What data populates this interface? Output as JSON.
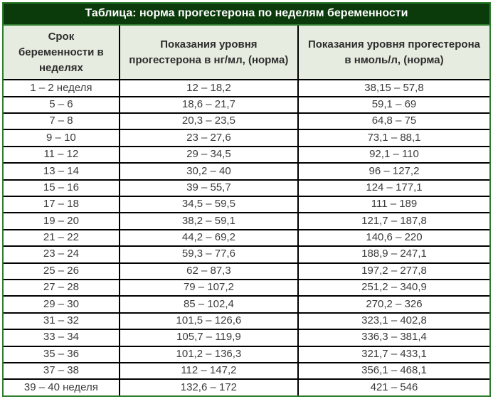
{
  "chart_data": {
    "type": "table",
    "title": "Таблица: норма прогестерона по неделям беременности",
    "columns": [
      "Срок беременности в неделях",
      "Показания уровня прогестерона в нг/мл, (норма)",
      "Показания уровня прогестерона в нмоль/л, (норма)"
    ],
    "rows": [
      [
        "1 – 2 неделя",
        "12 – 18,2",
        "38,15 – 57,8"
      ],
      [
        "5 – 6",
        "18,6 – 21,7",
        "59,1 – 69"
      ],
      [
        "7 – 8",
        "20,3 – 23,5",
        "64,8 – 75"
      ],
      [
        "9 – 10",
        "23 – 27,6",
        "73,1 – 88,1"
      ],
      [
        "11 – 12",
        "29 – 34,5",
        "92,1 – 110"
      ],
      [
        "13 – 14",
        "30,2 – 40",
        "96 – 127,2"
      ],
      [
        "15 – 16",
        "39 – 55,7",
        "124 – 177,1"
      ],
      [
        "17 – 18",
        "34,5 – 59,5",
        "111 – 189"
      ],
      [
        "19 – 20",
        "38,2 – 59,1",
        "121,7 – 187,8"
      ],
      [
        "21 – 22",
        "44,2 – 69,2",
        "140,6 – 220"
      ],
      [
        "23 – 24",
        "59,3 – 77,6",
        "188,9 – 247,1"
      ],
      [
        "25 – 26",
        "62 – 87,3",
        "197,2 – 277,8"
      ],
      [
        "27 – 28",
        "79 – 107,2",
        "251,2 – 340,9"
      ],
      [
        "29 – 30",
        "85 – 102,4",
        "270,2 – 326"
      ],
      [
        "31 – 32",
        "101,5 – 126,6",
        "323,1 – 402,8"
      ],
      [
        "33 – 34",
        "105,7 – 119,9",
        "336,3 – 381,4"
      ],
      [
        "35 – 36",
        "101,2 – 136,3",
        "321,7 – 433,1"
      ],
      [
        "37 – 38",
        "112 – 147,2",
        "356,1 – 468,1"
      ],
      [
        "39 – 40 неделя",
        "132,6 – 172",
        "421 – 546"
      ]
    ],
    "layout": {
      "grid": true,
      "text_align": "center"
    }
  },
  "colors": {
    "outer_border": "#2e7d2e",
    "title_background": "#0b3a0b",
    "title_text": "#ffffff",
    "header_background": "#e6ece0",
    "cell_border": "#000000",
    "cell_text": "#3c3c3c"
  }
}
